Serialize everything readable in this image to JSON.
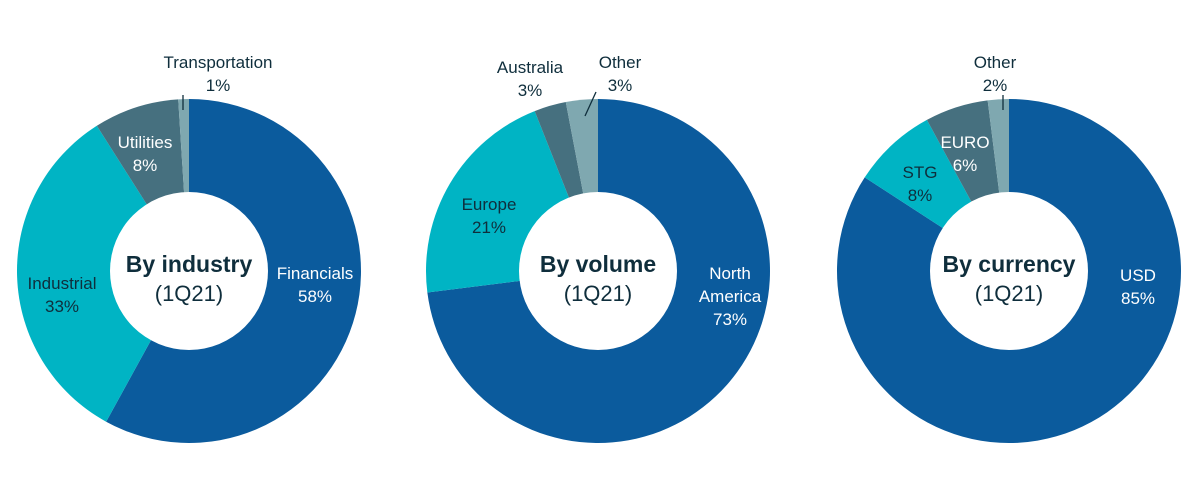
{
  "colors": {
    "dark_blue": "#0b5b9d",
    "cyan": "#00b4c4",
    "slate": "#46707f",
    "light_slate": "#7fa8b0",
    "text_dark": "#0f2e3c",
    "text_light": "#ffffff"
  },
  "chart_data": [
    {
      "type": "pie",
      "title": "By industry",
      "subtitle": "(1Q21)",
      "slices": [
        {
          "label": "Financials",
          "value": 58,
          "value_label": "58%",
          "color": "#0b5b9d"
        },
        {
          "label": "Industrial",
          "value": 33,
          "value_label": "33%",
          "color": "#00b4c4"
        },
        {
          "label": "Utilities",
          "value": 8,
          "value_label": "8%",
          "color": "#46707f"
        },
        {
          "label": "Transportation",
          "value": 1,
          "value_label": "1%",
          "color": "#7fa8b0"
        }
      ]
    },
    {
      "type": "pie",
      "title": "By volume",
      "subtitle": "(1Q21)",
      "slices": [
        {
          "label": "North America",
          "value": 73,
          "value_label": "73%",
          "color": "#0b5b9d"
        },
        {
          "label": "Europe",
          "value": 21,
          "value_label": "21%",
          "color": "#00b4c4"
        },
        {
          "label": "Australia",
          "value": 3,
          "value_label": "3%",
          "color": "#46707f"
        },
        {
          "label": "Other",
          "value": 3,
          "value_label": "3%",
          "color": "#7fa8b0"
        }
      ]
    },
    {
      "type": "pie",
      "title": "By currency",
      "subtitle": "(1Q21)",
      "slices": [
        {
          "label": "USD",
          "value": 85,
          "value_label": "85%",
          "color": "#0b5b9d"
        },
        {
          "label": "STG",
          "value": 8,
          "value_label": "8%",
          "color": "#00b4c4"
        },
        {
          "label": "EURO",
          "value": 6,
          "value_label": "6%",
          "color": "#46707f"
        },
        {
          "label": "Other",
          "value": 2,
          "value_label": "2%",
          "color": "#7fa8b0"
        }
      ]
    }
  ]
}
